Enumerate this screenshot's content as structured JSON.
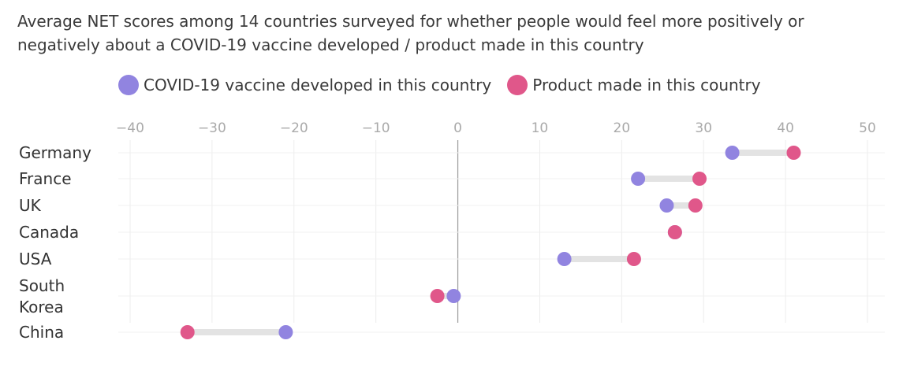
{
  "chart_data": {
    "type": "dumbbell",
    "title": "Average NET scores among 14 countries surveyed for whether people would feel more positively or negatively about a COVID-19 vaccine developed / product made in this country",
    "xlim": [
      -42,
      52
    ],
    "xticks": [
      -40,
      -30,
      -20,
      -10,
      0,
      10,
      20,
      30,
      40,
      50
    ],
    "xtick_labels": [
      "−40",
      "−30",
      "−20",
      "−10",
      "0",
      "10",
      "20",
      "30",
      "40",
      "50"
    ],
    "grid": true,
    "legend_position": "top",
    "series": [
      {
        "name": "COVID-19 vaccine developed in this country",
        "color": "#9184e0"
      },
      {
        "name": "Product made in this country",
        "color": "#e0578a"
      }
    ],
    "categories": [
      {
        "label": [
          "Germany"
        ],
        "vaccine": 33.5,
        "product": 41
      },
      {
        "label": [
          "France"
        ],
        "vaccine": 22,
        "product": 29.5
      },
      {
        "label": [
          "UK"
        ],
        "vaccine": 25.5,
        "product": 29
      },
      {
        "label": [
          "Canada"
        ],
        "vaccine": 26.5,
        "product": 26.5
      },
      {
        "label": [
          "USA"
        ],
        "vaccine": 13,
        "product": 21.5
      },
      {
        "label": [
          "South",
          "Korea"
        ],
        "vaccine": -0.5,
        "product": -2.5
      },
      {
        "label": [
          "China"
        ],
        "vaccine": -21,
        "product": -33
      }
    ]
  }
}
